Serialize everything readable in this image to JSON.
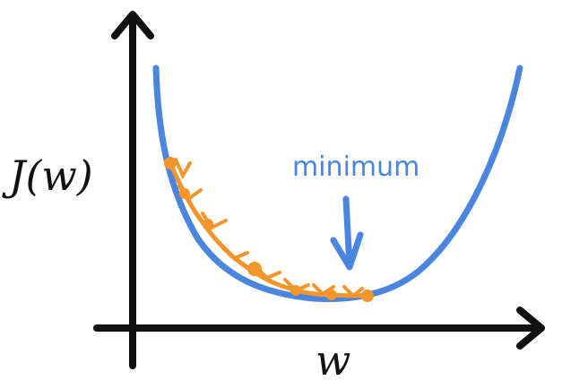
{
  "labels": {
    "y_axis": "J(w)",
    "x_axis": "w",
    "annotation": "minimum"
  },
  "colors": {
    "axis": "#111111",
    "cost_curve": "#4a86e0",
    "descent_path": "#f2952b",
    "annotation": "#4a86e0"
  },
  "icons": {
    "arrow": "arrow-down-icon"
  }
}
